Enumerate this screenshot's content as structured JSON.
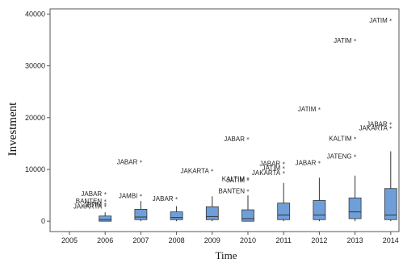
{
  "chart_data": {
    "type": "box",
    "xlabel": "Time",
    "ylabel": "Investment",
    "ylim": [
      -2000,
      41000
    ],
    "yticks": [
      0,
      10000,
      20000,
      30000,
      40000
    ],
    "categories": [
      "2005",
      "2006",
      "2007",
      "2008",
      "2009",
      "2010",
      "2011",
      "2012",
      "2013",
      "2014"
    ],
    "box_color": "#6f9fd8",
    "outlier_marker": "*",
    "boxes": [
      {
        "category": "2005",
        "min": 0,
        "q1": 0,
        "median": 0,
        "q3": 0,
        "max": 0
      },
      {
        "category": "2006",
        "min": 0,
        "q1": 0,
        "median": 300,
        "q3": 1000,
        "max": 1700
      },
      {
        "category": "2007",
        "min": 0,
        "q1": 300,
        "median": 800,
        "q3": 2300,
        "max": 3900
      },
      {
        "category": "2008",
        "min": 0,
        "q1": 300,
        "median": 700,
        "q3": 1800,
        "max": 2900
      },
      {
        "category": "2009",
        "min": 0,
        "q1": 300,
        "median": 900,
        "q3": 2800,
        "max": 4800
      },
      {
        "category": "2010",
        "min": 0,
        "q1": 0,
        "median": 500,
        "q3": 2200,
        "max": 5000
      },
      {
        "category": "2011",
        "min": 0,
        "q1": 300,
        "median": 1200,
        "q3": 3500,
        "max": 7400
      },
      {
        "category": "2012",
        "min": 0,
        "q1": 300,
        "median": 1200,
        "q3": 4000,
        "max": 8400
      },
      {
        "category": "2013",
        "min": 0,
        "q1": 500,
        "median": 1800,
        "q3": 4500,
        "max": 8800
      },
      {
        "category": "2014",
        "min": 0,
        "q1": 300,
        "median": 1200,
        "q3": 6300,
        "max": 13500
      }
    ],
    "outliers": [
      {
        "category": "2006",
        "label": "JABAR",
        "value": 5300
      },
      {
        "category": "2006",
        "label": "BANTEN",
        "value": 3900
      },
      {
        "category": "2006",
        "label": "JATIM",
        "value": 3300
      },
      {
        "category": "2006",
        "label": "JAKARTA",
        "value": 2900
      },
      {
        "category": "2007",
        "label": "JABAR",
        "value": 11500
      },
      {
        "category": "2007",
        "label": "JAMBI",
        "value": 4900
      },
      {
        "category": "2008",
        "label": "JABAR",
        "value": 4400
      },
      {
        "category": "2009",
        "label": "JAKARTA",
        "value": 9800
      },
      {
        "category": "2010",
        "label": "JABAR",
        "value": 15900
      },
      {
        "category": "2010",
        "label": "KALTIM",
        "value": 8200
      },
      {
        "category": "2010",
        "label": "JATIM",
        "value": 8000
      },
      {
        "category": "2010",
        "label": "BANTEN",
        "value": 5900
      },
      {
        "category": "2011",
        "label": "JABAR",
        "value": 11200
      },
      {
        "category": "2011",
        "label": "JATIM",
        "value": 10300
      },
      {
        "category": "2011",
        "label": "JAKARTA",
        "value": 9400
      },
      {
        "category": "2012",
        "label": "JATIM",
        "value": 21700
      },
      {
        "category": "2012",
        "label": "JABAR",
        "value": 11300
      },
      {
        "category": "2013",
        "label": "JATIM",
        "value": 34900
      },
      {
        "category": "2013",
        "label": "KALTIM",
        "value": 16000
      },
      {
        "category": "2013",
        "label": "JATENG",
        "value": 12600
      },
      {
        "category": "2014",
        "label": "JATIM",
        "value": 38800
      },
      {
        "category": "2014",
        "label": "JABAR",
        "value": 18800
      },
      {
        "category": "2014",
        "label": "JAKARTA",
        "value": 18000
      }
    ]
  }
}
